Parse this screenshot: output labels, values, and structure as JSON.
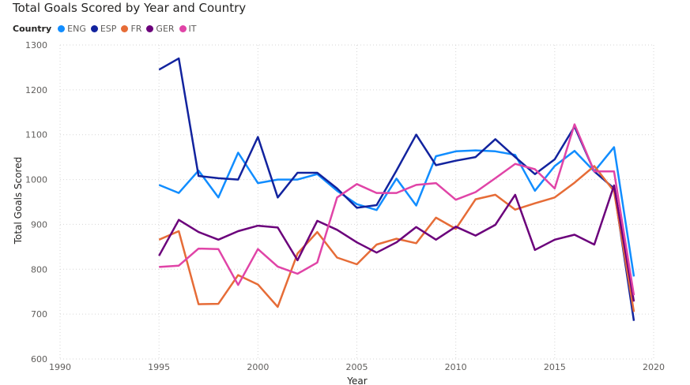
{
  "chart_data": {
    "type": "line",
    "title": "Total Goals Scored by Year and Country",
    "legend_title": "Country",
    "legend_position": "top-left",
    "xlabel": "Year",
    "ylabel": "Total Goals Scored",
    "xlim": [
      1990,
      2020
    ],
    "ylim": [
      600,
      1300
    ],
    "xticks": [
      1990,
      1995,
      2000,
      2005,
      2010,
      2015,
      2020
    ],
    "yticks": [
      600,
      700,
      800,
      900,
      1000,
      1100,
      1200,
      1300
    ],
    "grid": "dotted",
    "x": [
      1995,
      1996,
      1997,
      1998,
      1999,
      2000,
      2001,
      2002,
      2003,
      2004,
      2005,
      2006,
      2007,
      2008,
      2009,
      2010,
      2011,
      2012,
      2013,
      2014,
      2015,
      2016,
      2017,
      2018,
      2019
    ],
    "series": [
      {
        "name": "ENG",
        "color": "#118dff",
        "values": [
          988,
          970,
          1020,
          960,
          1060,
          992,
          1000,
          1000,
          1012,
          975,
          945,
          932,
          1002,
          942,
          1052,
          1063,
          1065,
          1063,
          1055,
          975,
          1030,
          1064,
          1018,
          1072,
          784
        ]
      },
      {
        "name": "ESP",
        "color": "#12239e",
        "values": [
          1245,
          1270,
          1008,
          1003,
          1000,
          1095,
          960,
          1015,
          1015,
          980,
          937,
          943,
          1020,
          1100,
          1032,
          1042,
          1050,
          1090,
          1050,
          1012,
          1045,
          1118,
          1018,
          980,
          685
        ]
      },
      {
        "name": "FR",
        "color": "#e66c37",
        "values": [
          866,
          885,
          722,
          723,
          787,
          766,
          716,
          835,
          883,
          826,
          811,
          855,
          868,
          858,
          915,
          890,
          956,
          966,
          933,
          947,
          960,
          993,
          1030,
          974,
          705
        ]
      },
      {
        "name": "GER",
        "color": "#6b007b",
        "values": [
          830,
          910,
          883,
          866,
          885,
          897,
          893,
          820,
          908,
          888,
          860,
          837,
          860,
          894,
          866,
          895,
          875,
          899,
          966,
          843,
          866,
          877,
          855,
          987,
          728
        ]
      },
      {
        "name": "IT",
        "color": "#e044a7",
        "values": [
          805,
          808,
          846,
          845,
          765,
          845,
          806,
          790,
          815,
          960,
          990,
          970,
          970,
          988,
          992,
          955,
          972,
          1003,
          1035,
          1023,
          980,
          1123,
          1018,
          1018,
          742
        ]
      }
    ]
  }
}
